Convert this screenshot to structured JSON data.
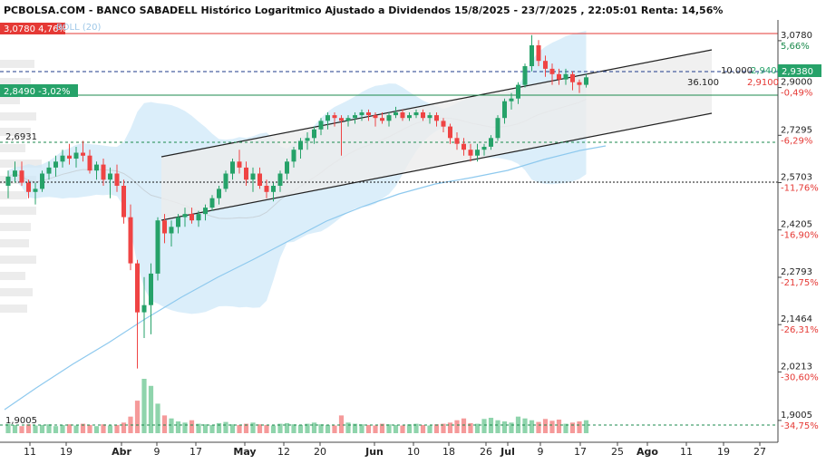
{
  "title": "PCBOLSA.COM - BANCO SABADELL Histórico Logaritmico Ajustado a Dividendos 15/8/2025 - 23/7/2025 , 22:05:01 Renta: 14,56%",
  "overlay_label": "BOLL (20)",
  "colors": {
    "up": "#26a269",
    "down": "#ef4444",
    "bollinger_fill": "#cfe8f8",
    "moving_average": "#8ec9ee",
    "channel_fill": "#ececec",
    "red_line": "#e53935",
    "green_line": "#1b8a4c"
  },
  "price_tags": [
    {
      "id": "high",
      "label": "3,0780",
      "pct": "4,76%",
      "color": "#e53935"
    },
    {
      "id": "ref",
      "label": "2,8490",
      "pct": "-3,02%",
      "color": "#26a269"
    },
    {
      "id": "last",
      "label": "2,9380",
      "color": "#26a269"
    }
  ],
  "level_labels": [
    {
      "value": 2.6931,
      "label": "2,6931"
    },
    {
      "value": 1.9005,
      "label": "1,9005"
    }
  ],
  "right_axis": [
    {
      "value": 3.078,
      "label": "3,0780",
      "pct": "5,66%",
      "pct_color": "#1b8a4c"
    },
    {
      "value": 2.9,
      "label": "2,9000",
      "pct": "-0,49%",
      "pct_color": "#e53935"
    },
    {
      "value": 2.7295,
      "label": "2,7295",
      "pct": "-6,29%",
      "pct_color": "#e53935"
    },
    {
      "value": 2.5703,
      "label": "2,5703",
      "pct": "-11,76%",
      "pct_color": "#e53935"
    },
    {
      "value": 2.4205,
      "label": "2,4205",
      "pct": "-16,90%",
      "pct_color": "#e53935"
    },
    {
      "value": 2.2793,
      "label": "2,2793",
      "pct": "-21,75%",
      "pct_color": "#e53935"
    },
    {
      "value": 2.1464,
      "label": "2,1464",
      "pct": "-26,31%",
      "pct_color": "#e53935"
    },
    {
      "value": 2.0213,
      "label": "2,0213",
      "pct": "-30,60%",
      "pct_color": "#e53935"
    },
    {
      "value": 1.9005,
      "label": "1,9005",
      "pct": "-34,75%",
      "pct_color": "#e53935"
    }
  ],
  "annotations": {
    "vol_a": "10.000",
    "vol_b": "36.100",
    "ask": "2,9400",
    "bid": "2,9100"
  },
  "x_ticks": [
    {
      "label": "11",
      "bold": false
    },
    {
      "label": "19",
      "bold": false
    },
    {
      "label": "Abr",
      "bold": true
    },
    {
      "label": "9",
      "bold": false
    },
    {
      "label": "17",
      "bold": false
    },
    {
      "label": "May",
      "bold": true
    },
    {
      "label": "12",
      "bold": false
    },
    {
      "label": "20",
      "bold": false
    },
    {
      "label": "Jun",
      "bold": true
    },
    {
      "label": "10",
      "bold": false
    },
    {
      "label": "18",
      "bold": false
    },
    {
      "label": "26",
      "bold": false
    },
    {
      "label": "Jul",
      "bold": true
    },
    {
      "label": "9",
      "bold": false
    },
    {
      "label": "17",
      "bold": false
    },
    {
      "label": "25",
      "bold": false
    },
    {
      "label": "Ago",
      "bold": true
    },
    {
      "label": "11",
      "bold": false
    },
    {
      "label": "19",
      "bold": false
    },
    {
      "label": "27",
      "bold": false
    }
  ],
  "chart_data": {
    "type": "candlestick",
    "title": "PCBOLSA.COM - BANCO SABADELL Histórico Logaritmico Ajustado a Dividendos 15/8/2025 - 23/7/2025 , 22:05:01 Renta: 14,56%",
    "y_scale": "log",
    "ylim": [
      1.87,
      3.16
    ],
    "overlays": [
      "BOLL (20)",
      "moving average",
      "trend channel"
    ],
    "candles": [
      {
        "o": 2.56,
        "h": 2.61,
        "l": 2.52,
        "c": 2.59
      },
      {
        "o": 2.59,
        "h": 2.64,
        "l": 2.57,
        "c": 2.61
      },
      {
        "o": 2.61,
        "h": 2.64,
        "l": 2.56,
        "c": 2.57
      },
      {
        "o": 2.57,
        "h": 2.58,
        "l": 2.52,
        "c": 2.54
      },
      {
        "o": 2.54,
        "h": 2.57,
        "l": 2.5,
        "c": 2.55
      },
      {
        "o": 2.55,
        "h": 2.61,
        "l": 2.54,
        "c": 2.6
      },
      {
        "o": 2.6,
        "h": 2.64,
        "l": 2.58,
        "c": 2.62
      },
      {
        "o": 2.62,
        "h": 2.66,
        "l": 2.59,
        "c": 2.64
      },
      {
        "o": 2.64,
        "h": 2.68,
        "l": 2.62,
        "c": 2.66
      },
      {
        "o": 2.66,
        "h": 2.7,
        "l": 2.63,
        "c": 2.65
      },
      {
        "o": 2.65,
        "h": 2.69,
        "l": 2.62,
        "c": 2.67
      },
      {
        "o": 2.67,
        "h": 2.71,
        "l": 2.64,
        "c": 2.66
      },
      {
        "o": 2.66,
        "h": 2.68,
        "l": 2.6,
        "c": 2.61
      },
      {
        "o": 2.61,
        "h": 2.64,
        "l": 2.58,
        "c": 2.63
      },
      {
        "o": 2.63,
        "h": 2.65,
        "l": 2.56,
        "c": 2.58
      },
      {
        "o": 2.58,
        "h": 2.62,
        "l": 2.52,
        "c": 2.6
      },
      {
        "o": 2.6,
        "h": 2.63,
        "l": 2.54,
        "c": 2.56
      },
      {
        "o": 2.56,
        "h": 2.58,
        "l": 2.44,
        "c": 2.46
      },
      {
        "o": 2.46,
        "h": 2.5,
        "l": 2.3,
        "c": 2.32
      },
      {
        "o": 2.32,
        "h": 2.33,
        "l": 2.03,
        "c": 2.18
      },
      {
        "o": 2.18,
        "h": 2.28,
        "l": 2.11,
        "c": 2.2
      },
      {
        "o": 2.2,
        "h": 2.32,
        "l": 2.12,
        "c": 2.29
      },
      {
        "o": 2.29,
        "h": 2.46,
        "l": 2.27,
        "c": 2.45
      },
      {
        "o": 2.45,
        "h": 2.47,
        "l": 2.38,
        "c": 2.41
      },
      {
        "o": 2.41,
        "h": 2.45,
        "l": 2.37,
        "c": 2.43
      },
      {
        "o": 2.43,
        "h": 2.47,
        "l": 2.41,
        "c": 2.46
      },
      {
        "o": 2.46,
        "h": 2.49,
        "l": 2.43,
        "c": 2.47
      },
      {
        "o": 2.47,
        "h": 2.49,
        "l": 2.44,
        "c": 2.45
      },
      {
        "o": 2.45,
        "h": 2.48,
        "l": 2.43,
        "c": 2.47
      },
      {
        "o": 2.47,
        "h": 2.5,
        "l": 2.45,
        "c": 2.49
      },
      {
        "o": 2.49,
        "h": 2.53,
        "l": 2.48,
        "c": 2.52
      },
      {
        "o": 2.52,
        "h": 2.56,
        "l": 2.5,
        "c": 2.55
      },
      {
        "o": 2.55,
        "h": 2.61,
        "l": 2.54,
        "c": 2.6
      },
      {
        "o": 2.6,
        "h": 2.65,
        "l": 2.58,
        "c": 2.64
      },
      {
        "o": 2.64,
        "h": 2.68,
        "l": 2.6,
        "c": 2.62
      },
      {
        "o": 2.62,
        "h": 2.64,
        "l": 2.56,
        "c": 2.58
      },
      {
        "o": 2.58,
        "h": 2.62,
        "l": 2.54,
        "c": 2.6
      },
      {
        "o": 2.6,
        "h": 2.62,
        "l": 2.55,
        "c": 2.56
      },
      {
        "o": 2.56,
        "h": 2.58,
        "l": 2.52,
        "c": 2.54
      },
      {
        "o": 2.54,
        "h": 2.57,
        "l": 2.51,
        "c": 2.56
      },
      {
        "o": 2.56,
        "h": 2.61,
        "l": 2.54,
        "c": 2.6
      },
      {
        "o": 2.6,
        "h": 2.65,
        "l": 2.58,
        "c": 2.64
      },
      {
        "o": 2.64,
        "h": 2.69,
        "l": 2.62,
        "c": 2.68
      },
      {
        "o": 2.68,
        "h": 2.72,
        "l": 2.65,
        "c": 2.71
      },
      {
        "o": 2.71,
        "h": 2.74,
        "l": 2.68,
        "c": 2.72
      },
      {
        "o": 2.72,
        "h": 2.76,
        "l": 2.7,
        "c": 2.75
      },
      {
        "o": 2.75,
        "h": 2.79,
        "l": 2.73,
        "c": 2.78
      },
      {
        "o": 2.78,
        "h": 2.81,
        "l": 2.75,
        "c": 2.8
      },
      {
        "o": 2.8,
        "h": 2.81,
        "l": 2.76,
        "c": 2.79
      },
      {
        "o": 2.79,
        "h": 2.8,
        "l": 2.66,
        "c": 2.78
      },
      {
        "o": 2.78,
        "h": 2.8,
        "l": 2.76,
        "c": 2.79
      },
      {
        "o": 2.79,
        "h": 2.81,
        "l": 2.77,
        "c": 2.8
      },
      {
        "o": 2.8,
        "h": 2.82,
        "l": 2.78,
        "c": 2.81
      },
      {
        "o": 2.81,
        "h": 2.82,
        "l": 2.78,
        "c": 2.8
      },
      {
        "o": 2.8,
        "h": 2.81,
        "l": 2.76,
        "c": 2.79
      },
      {
        "o": 2.79,
        "h": 2.81,
        "l": 2.77,
        "c": 2.78
      },
      {
        "o": 2.78,
        "h": 2.81,
        "l": 2.76,
        "c": 2.8
      },
      {
        "o": 2.8,
        "h": 2.83,
        "l": 2.79,
        "c": 2.81
      },
      {
        "o": 2.81,
        "h": 2.82,
        "l": 2.78,
        "c": 2.79
      },
      {
        "o": 2.79,
        "h": 2.81,
        "l": 2.78,
        "c": 2.8
      },
      {
        "o": 2.8,
        "h": 2.82,
        "l": 2.79,
        "c": 2.81
      },
      {
        "o": 2.81,
        "h": 2.82,
        "l": 2.78,
        "c": 2.79
      },
      {
        "o": 2.79,
        "h": 2.81,
        "l": 2.77,
        "c": 2.8
      },
      {
        "o": 2.8,
        "h": 2.81,
        "l": 2.76,
        "c": 2.78
      },
      {
        "o": 2.78,
        "h": 2.79,
        "l": 2.74,
        "c": 2.76
      },
      {
        "o": 2.76,
        "h": 2.77,
        "l": 2.7,
        "c": 2.72
      },
      {
        "o": 2.72,
        "h": 2.74,
        "l": 2.68,
        "c": 2.7
      },
      {
        "o": 2.7,
        "h": 2.72,
        "l": 2.66,
        "c": 2.68
      },
      {
        "o": 2.68,
        "h": 2.7,
        "l": 2.64,
        "c": 2.66
      },
      {
        "o": 2.66,
        "h": 2.7,
        "l": 2.64,
        "c": 2.68
      },
      {
        "o": 2.68,
        "h": 2.7,
        "l": 2.66,
        "c": 2.69
      },
      {
        "o": 2.69,
        "h": 2.73,
        "l": 2.68,
        "c": 2.72
      },
      {
        "o": 2.72,
        "h": 2.8,
        "l": 2.71,
        "c": 2.79
      },
      {
        "o": 2.79,
        "h": 2.86,
        "l": 2.77,
        "c": 2.85
      },
      {
        "o": 2.85,
        "h": 2.88,
        "l": 2.82,
        "c": 2.86
      },
      {
        "o": 2.86,
        "h": 2.92,
        "l": 2.84,
        "c": 2.91
      },
      {
        "o": 2.91,
        "h": 2.99,
        "l": 2.9,
        "c": 2.98
      },
      {
        "o": 2.98,
        "h": 3.1,
        "l": 2.96,
        "c": 3.06
      },
      {
        "o": 3.06,
        "h": 3.08,
        "l": 2.98,
        "c": 3.0
      },
      {
        "o": 3.0,
        "h": 3.02,
        "l": 2.94,
        "c": 2.97
      },
      {
        "o": 2.97,
        "h": 2.99,
        "l": 2.91,
        "c": 2.95
      },
      {
        "o": 2.95,
        "h": 2.97,
        "l": 2.91,
        "c": 2.93
      },
      {
        "o": 2.93,
        "h": 2.97,
        "l": 2.91,
        "c": 2.95
      },
      {
        "o": 2.95,
        "h": 2.96,
        "l": 2.89,
        "c": 2.92
      },
      {
        "o": 2.92,
        "h": 2.93,
        "l": 2.88,
        "c": 2.91
      },
      {
        "o": 2.91,
        "h": 2.95,
        "l": 2.9,
        "c": 2.938
      }
    ],
    "volumes": [
      16,
      14,
      12,
      15,
      13,
      14,
      15,
      12,
      14,
      15,
      13,
      16,
      14,
      12,
      15,
      13,
      14,
      18,
      28,
      55,
      92,
      80,
      50,
      30,
      25,
      20,
      18,
      22,
      16,
      15,
      14,
      17,
      19,
      15,
      14,
      16,
      18,
      15,
      14,
      13,
      16,
      17,
      15,
      14,
      16,
      18,
      15,
      14,
      13,
      30,
      18,
      16,
      15,
      14,
      13,
      16,
      15,
      14,
      13,
      15,
      16,
      14,
      13,
      15,
      16,
      18,
      22,
      25,
      17,
      16,
      24,
      26,
      22,
      20,
      18,
      28,
      25,
      22,
      19,
      24,
      21,
      23,
      16,
      18,
      20,
      22
    ]
  }
}
